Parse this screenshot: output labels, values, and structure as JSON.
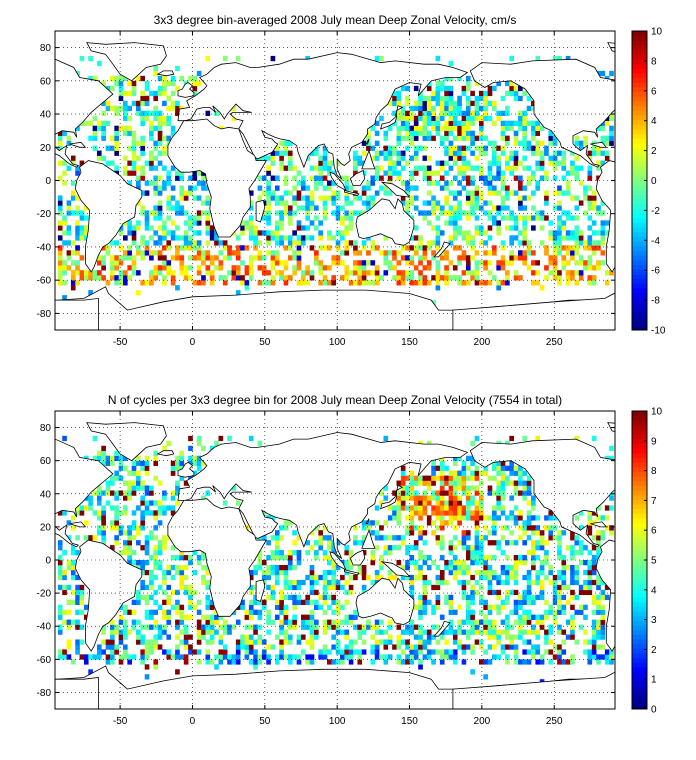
{
  "chart_data": [
    {
      "type": "heatmap",
      "title": "3x3 degree bin-averaged 2008 July mean Deep Zonal Velocity, cm/s",
      "xlim": [
        -95,
        292
      ],
      "ylim": [
        -90,
        90
      ],
      "x_ticks": [
        -50,
        0,
        50,
        100,
        150,
        200,
        250
      ],
      "y_ticks": [
        -80,
        -60,
        -40,
        -20,
        0,
        20,
        40,
        60,
        80
      ],
      "grid": true,
      "bin_size_deg": 3,
      "colorbar": {
        "min": -10,
        "max": 10,
        "ticks": [
          -10,
          -8,
          -6,
          -4,
          -2,
          0,
          2,
          4,
          6,
          8,
          10
        ],
        "colormap": "jet"
      }
    },
    {
      "type": "heatmap",
      "title": "N of cycles per 3x3 degree bin for 2008 July mean Deep Zonal Velocity (7554 in total)",
      "xlim": [
        -95,
        292
      ],
      "ylim": [
        -90,
        90
      ],
      "x_ticks": [
        -50,
        0,
        50,
        100,
        150,
        200,
        250
      ],
      "y_ticks": [
        -80,
        -60,
        -40,
        -20,
        0,
        20,
        40,
        60,
        80
      ],
      "grid": true,
      "bin_size_deg": 3,
      "colorbar": {
        "min": 0,
        "max": 10,
        "ticks": [
          0,
          1,
          2,
          3,
          4,
          5,
          6,
          7,
          8,
          9,
          10
        ],
        "colormap": "jet"
      }
    }
  ]
}
